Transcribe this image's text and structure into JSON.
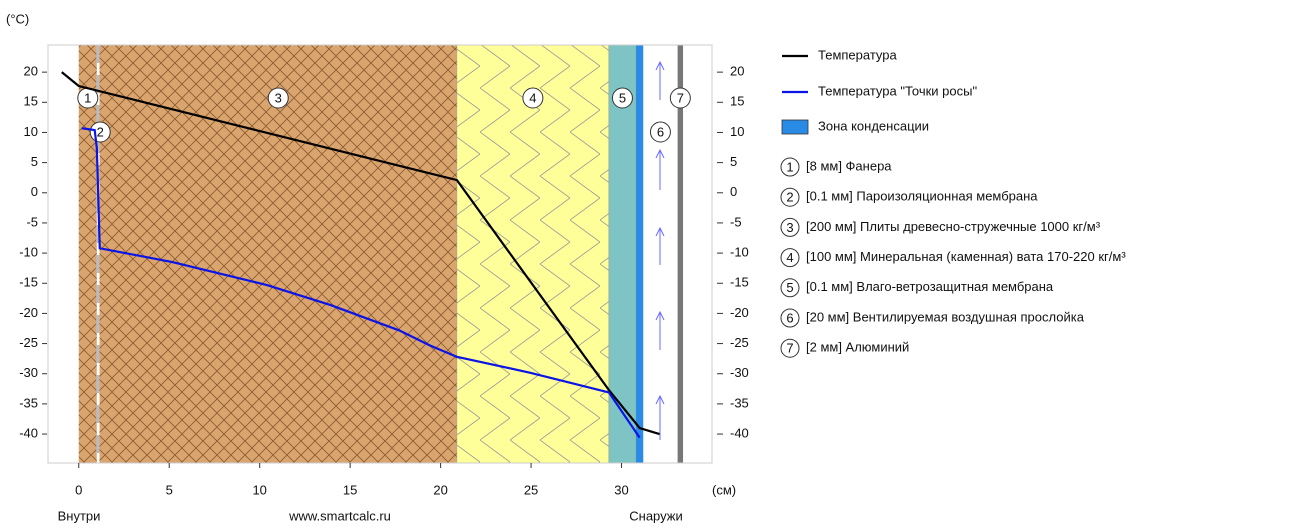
{
  "chart_data": {
    "type": "line",
    "y_unit": "(°C)",
    "x_unit": "(см)",
    "x_left_label": "Внутри",
    "watermark": "www.smartcalc.ru",
    "x_right_label": "Снаружи",
    "xlim": [
      -1.7,
      35
    ],
    "ylim": [
      -44.8,
      24.5
    ],
    "xticks": [
      0,
      5,
      10,
      15,
      20,
      25,
      30
    ],
    "yticks": [
      20,
      15,
      10,
      5,
      0,
      -5,
      -10,
      -15,
      -20,
      -25,
      -30,
      -35,
      -40
    ],
    "series": [
      {
        "name": "Температура",
        "color": "#000000",
        "x": [
          -0.94,
          0,
          20.9,
          29.3,
          31,
          32.1
        ],
        "values": [
          20,
          17.7,
          2.1,
          -32.7,
          -39,
          -40
        ]
      },
      {
        "name": "Температура \"Точки росы\"",
        "color": "#0a14e6",
        "x": [
          0.17,
          0.88,
          1.0,
          1.16,
          5.2,
          10.4,
          13.9,
          17.7,
          19.4,
          20.9,
          24.9,
          29.3,
          31.0
        ],
        "values": [
          10.7,
          10.4,
          7.4,
          -9.2,
          -11.5,
          -15.3,
          -18.6,
          -22.8,
          -25.3,
          -27.2,
          -29.8,
          -33.1,
          -40.6
        ]
      }
    ],
    "condensation": {
      "name": "Зона конденсации",
      "color": "#2a8be6",
      "x": [
        30.8,
        31.2
      ]
    },
    "layers": [
      {
        "num": "1",
        "name": "[8 мм] Фанера",
        "x": [
          0,
          1.0
        ],
        "color": "#d9a46e"
      },
      {
        "num": "2",
        "name": "[0.1 мм] Пароизоляционная мембрана",
        "x": [
          1.0,
          1.15
        ],
        "color": "#ffffff"
      },
      {
        "num": "3",
        "name": "[200 мм] Плиты древесно-стружечные 1000 кг/м³",
        "x": [
          1.15,
          20.9
        ],
        "color": "#d9a46e"
      },
      {
        "num": "4",
        "name": "[100 мм] Минеральная (каменная) вата 170-220 кг/м³",
        "x": [
          20.9,
          29.3
        ],
        "color": "#ffff99"
      },
      {
        "num": "5",
        "name": "[0.1 мм] Влаго-ветрозащитная мембрана",
        "x": [
          29.3,
          30.8
        ],
        "color": "#7fc4c4"
      },
      {
        "num": "6",
        "name": "[20 мм] Вентилируемая воздушная прослойка",
        "x": [
          31.2,
          33.1
        ],
        "color": "#ffffff"
      },
      {
        "num": "7",
        "name": "[2 мм] Алюминий",
        "x": [
          33.1,
          33.4
        ],
        "color": "#777777"
      }
    ]
  }
}
